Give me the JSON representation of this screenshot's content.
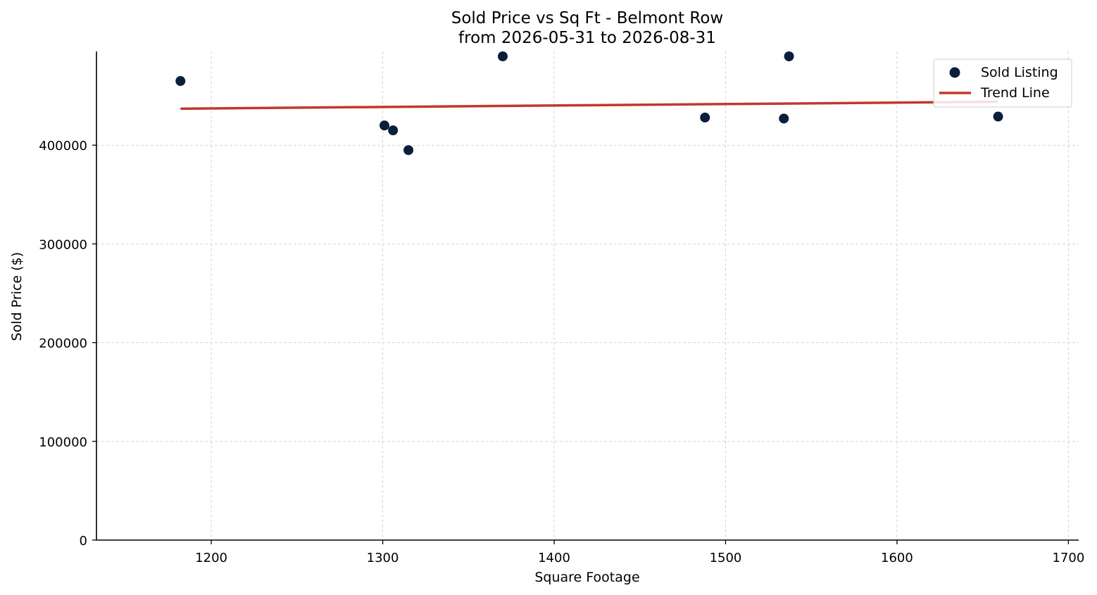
{
  "chart_data": {
    "type": "scatter",
    "title": "Sold Price vs Sq Ft - Belmont Row",
    "subtitle": "from 2026-05-31 to 2026-08-31",
    "xlabel": "Square Footage",
    "ylabel": "Sold Price ($)",
    "xlim": [
      1133,
      1706
    ],
    "ylim": [
      0,
      495000
    ],
    "xticks": [
      1200,
      1300,
      1400,
      1500,
      1600,
      1700
    ],
    "yticks": [
      0,
      100000,
      200000,
      300000,
      400000
    ],
    "grid": true,
    "legend_position": "top-right",
    "series": [
      {
        "name": "Sold Listing",
        "kind": "scatter",
        "color": "#0b1f3a",
        "x": [
          1182,
          1301,
          1306,
          1315,
          1370,
          1488,
          1534,
          1537,
          1659
        ],
        "y": [
          465000,
          420000,
          415000,
          395000,
          490000,
          428000,
          427000,
          490000,
          429000
        ]
      },
      {
        "name": "Trend Line",
        "kind": "line",
        "color": "#c0392b",
        "x": [
          1182,
          1659
        ],
        "y": [
          437000,
          444000
        ]
      }
    ]
  }
}
